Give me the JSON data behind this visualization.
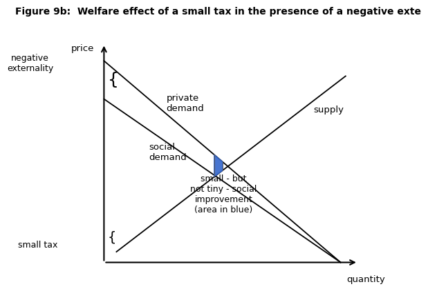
{
  "title": "Figure 9b:  Welfare effect of a small tax in the presence of a negative exte",
  "title_fontsize": 10,
  "xlabel": "quantity",
  "ylabel": "price",
  "xlim": [
    0,
    10
  ],
  "ylim": [
    0,
    10
  ],
  "background_color": "#ffffff",
  "private_demand_label": "private\ndemand",
  "social_demand_label": "social\ndemand",
  "supply_label": "supply",
  "negative_externality_label": "negative\nexternality",
  "small_tax_label": "small tax",
  "annotation_label": "small - but\nnot tiny - social\nimprovement\n(area in blue)",
  "blue_color": "#3366cc",
  "line_color": "#000000",
  "text_color": "#000000",
  "font_size": 9.5
}
